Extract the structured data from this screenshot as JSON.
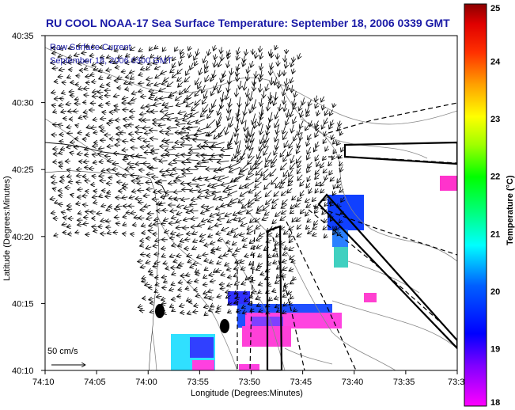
{
  "title": "RU COOL  NOAA-17  Sea Surface Temperature:  September 18, 2006 0339 GMT",
  "legend": {
    "line1": "Raw Surface Current",
    "line2": "September 18, 2006 0300 GMT",
    "scale_label": "50 cm/s"
  },
  "axes": {
    "xlabel": "Longitude (Degrees:Minutes)",
    "ylabel": "Latitude (Degrees:Minutes)",
    "x_ticks": [
      "74:10",
      "74:05",
      "74:00",
      "73:55",
      "73:50",
      "73:45",
      "73:40",
      "73:35",
      "73:3"
    ],
    "y_ticks": [
      "40:35",
      "40:30",
      "40:25",
      "40:20",
      "40:15",
      "40:10"
    ]
  },
  "colorbar": {
    "label": "Temperature (°C)",
    "ticks": [
      "25",
      "24",
      "23",
      "22",
      "21",
      "20",
      "19",
      "18"
    ],
    "min": 18,
    "max": 25
  },
  "chart_data": {
    "type": "map",
    "layers": [
      "sea surface temperature",
      "surface current vectors",
      "bathymetry contours",
      "coastline"
    ],
    "sst_range_c": [
      18,
      25
    ]
  }
}
